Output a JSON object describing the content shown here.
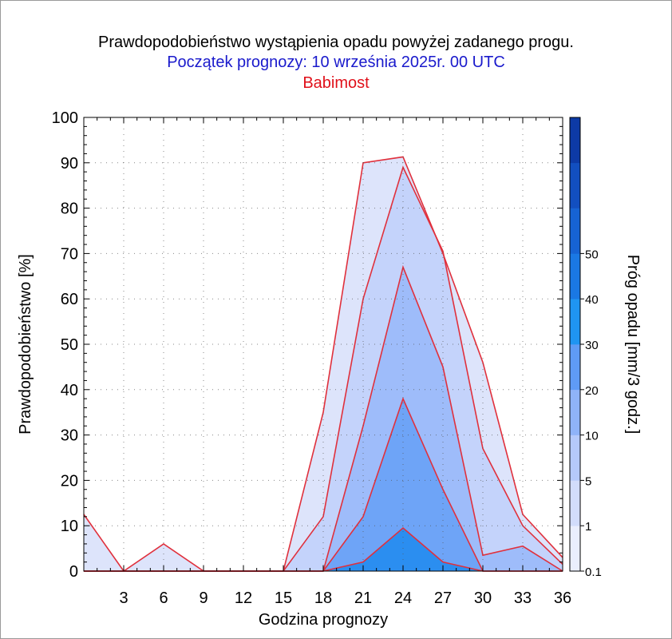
{
  "header": {
    "title": "Prawdopodobieństwo wystąpienia opadu powyżej zadanego progu.",
    "forecast_start": "Początek prognozy: 10 września 2025r. 00 UTC",
    "location": "Babimost"
  },
  "colors": {
    "title": "#000000",
    "forecast_start": "#1a1acc",
    "location": "#e0101a",
    "line": "#e0303c"
  },
  "chart_data": {
    "type": "area",
    "xlabel": "Godzina prognozy",
    "ylabel": "Prawdopodobieństwo [%]",
    "x": [
      0,
      3,
      6,
      9,
      12,
      15,
      18,
      21,
      24,
      27,
      30,
      33,
      36
    ],
    "xticks": [
      3,
      6,
      9,
      12,
      15,
      18,
      21,
      24,
      27,
      30,
      33,
      36
    ],
    "xlim": [
      0,
      36
    ],
    "ylim": [
      0,
      100
    ],
    "yticks": [
      0,
      10,
      20,
      30,
      40,
      50,
      60,
      70,
      80,
      90,
      100
    ],
    "grid": true,
    "series": [
      {
        "threshold": 0.1,
        "color": "#dde4fb",
        "values": [
          12.5,
          0,
          6,
          0,
          0,
          0,
          35,
          90,
          91.3,
          70,
          46,
          12.5,
          3
        ]
      },
      {
        "threshold": 1,
        "color": "#c4d3fb",
        "values": [
          0,
          0,
          0,
          0,
          0,
          0,
          12,
          60,
          89,
          70.5,
          27,
          10,
          1.5
        ]
      },
      {
        "threshold": 5,
        "color": "#9ebcfa",
        "values": [
          0,
          0,
          0,
          0,
          0,
          0,
          0,
          32,
          67,
          45,
          3.5,
          5.5,
          0
        ]
      },
      {
        "threshold": 10,
        "color": "#6ea4f7",
        "values": [
          0,
          0,
          0,
          0,
          0,
          0,
          0,
          12,
          38,
          18,
          0,
          0,
          0
        ]
      },
      {
        "threshold": 20,
        "color": "#2b8ef0",
        "values": [
          0,
          0,
          0,
          0,
          0,
          0,
          0,
          2,
          9.5,
          2,
          0,
          0,
          0
        ]
      }
    ],
    "colorbar": {
      "label": "Próg opadu [mm/3 godz.]",
      "ticks": [
        "0.1",
        "1",
        "5",
        "10",
        "20",
        "30",
        "40",
        "50"
      ],
      "colors": [
        "#eaeefd",
        "#d2dcfb",
        "#b5c9fa",
        "#8fb3f8",
        "#5f9bf5",
        "#1f95f2",
        "#1a78e4",
        "#1663d4",
        "#124fc0",
        "#0d3aa6"
      ]
    }
  }
}
